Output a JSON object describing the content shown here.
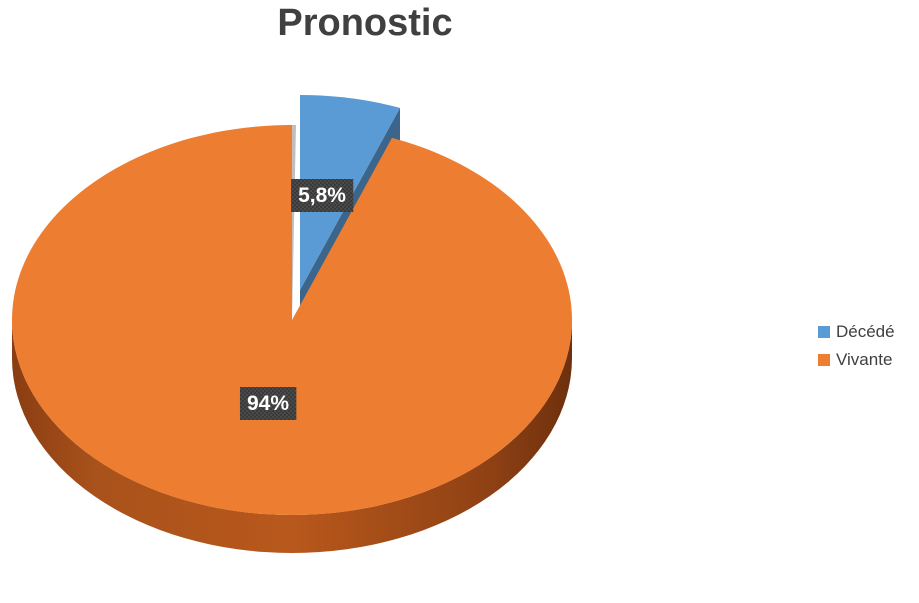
{
  "chart_data": {
    "type": "pie",
    "title": "Pronostic",
    "categories": [
      "Décédé",
      "Vivante"
    ],
    "values": [
      5.8,
      94
    ],
    "data_labels": [
      "5,8%",
      "94%"
    ],
    "colors": [
      "#5B9BD5",
      "#ED7D31"
    ],
    "legend_position": "right",
    "style": "3d-exploded"
  },
  "legend": {
    "items": [
      {
        "label": "Décédé",
        "color": "#5B9BD5"
      },
      {
        "label": "Vivante",
        "color": "#ED7D31"
      }
    ]
  }
}
